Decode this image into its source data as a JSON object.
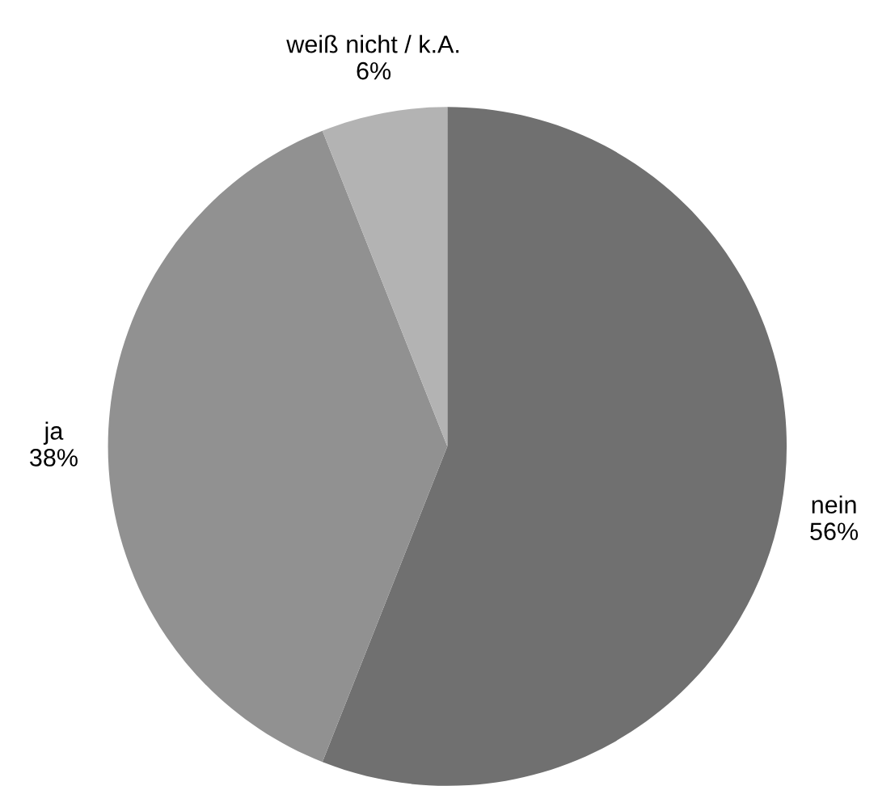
{
  "chart_data": {
    "type": "pie",
    "categories": [
      "nein",
      "ja",
      "weiß nicht / k.A."
    ],
    "values": [
      56,
      38,
      6
    ],
    "value_labels": [
      "56%",
      "38%",
      "6%"
    ],
    "colors": [
      "#707070",
      "#919191",
      "#b3b3b3"
    ],
    "legend": false
  }
}
